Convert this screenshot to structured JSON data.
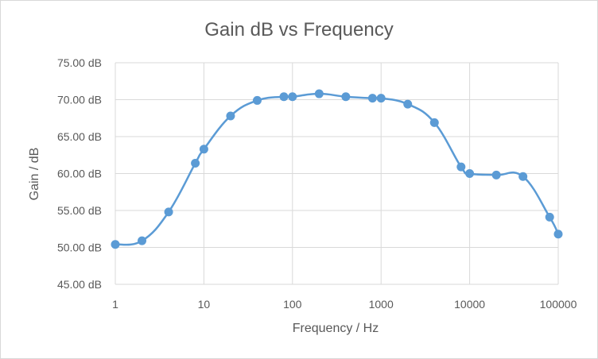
{
  "chart_data": {
    "type": "scatter",
    "title": "Gain dB vs Frequency",
    "xlabel": "Frequency / Hz",
    "ylabel": "Gain / dB",
    "x_scale": "log",
    "xlim": [
      1,
      100000
    ],
    "ylim": [
      45,
      75
    ],
    "x_ticks": [
      "1",
      "10",
      "100",
      "1000",
      "10000",
      "100000"
    ],
    "x_tick_values": [
      1,
      10,
      100,
      1000,
      10000,
      100000
    ],
    "y_ticks": [
      "45.00 dB",
      "50.00 dB",
      "55.00 dB",
      "60.00 dB",
      "65.00 dB",
      "70.00 dB",
      "75.00 dB"
    ],
    "y_tick_values": [
      45,
      50,
      55,
      60,
      65,
      70,
      75
    ],
    "grid": true,
    "smooth": true,
    "color": "#5b9bd5",
    "series": [
      {
        "x": [
          1,
          2,
          4,
          8,
          10,
          20,
          40,
          80,
          100,
          200,
          400,
          800,
          1000,
          2000,
          4000,
          8000,
          10000,
          20000,
          40000,
          80000,
          100000
        ],
        "y": [
          50.4,
          50.9,
          54.8,
          61.4,
          63.3,
          67.8,
          69.9,
          70.4,
          70.4,
          70.8,
          70.4,
          70.2,
          70.2,
          69.4,
          66.9,
          60.9,
          60.0,
          59.8,
          59.6,
          54.1,
          51.8
        ]
      }
    ]
  }
}
